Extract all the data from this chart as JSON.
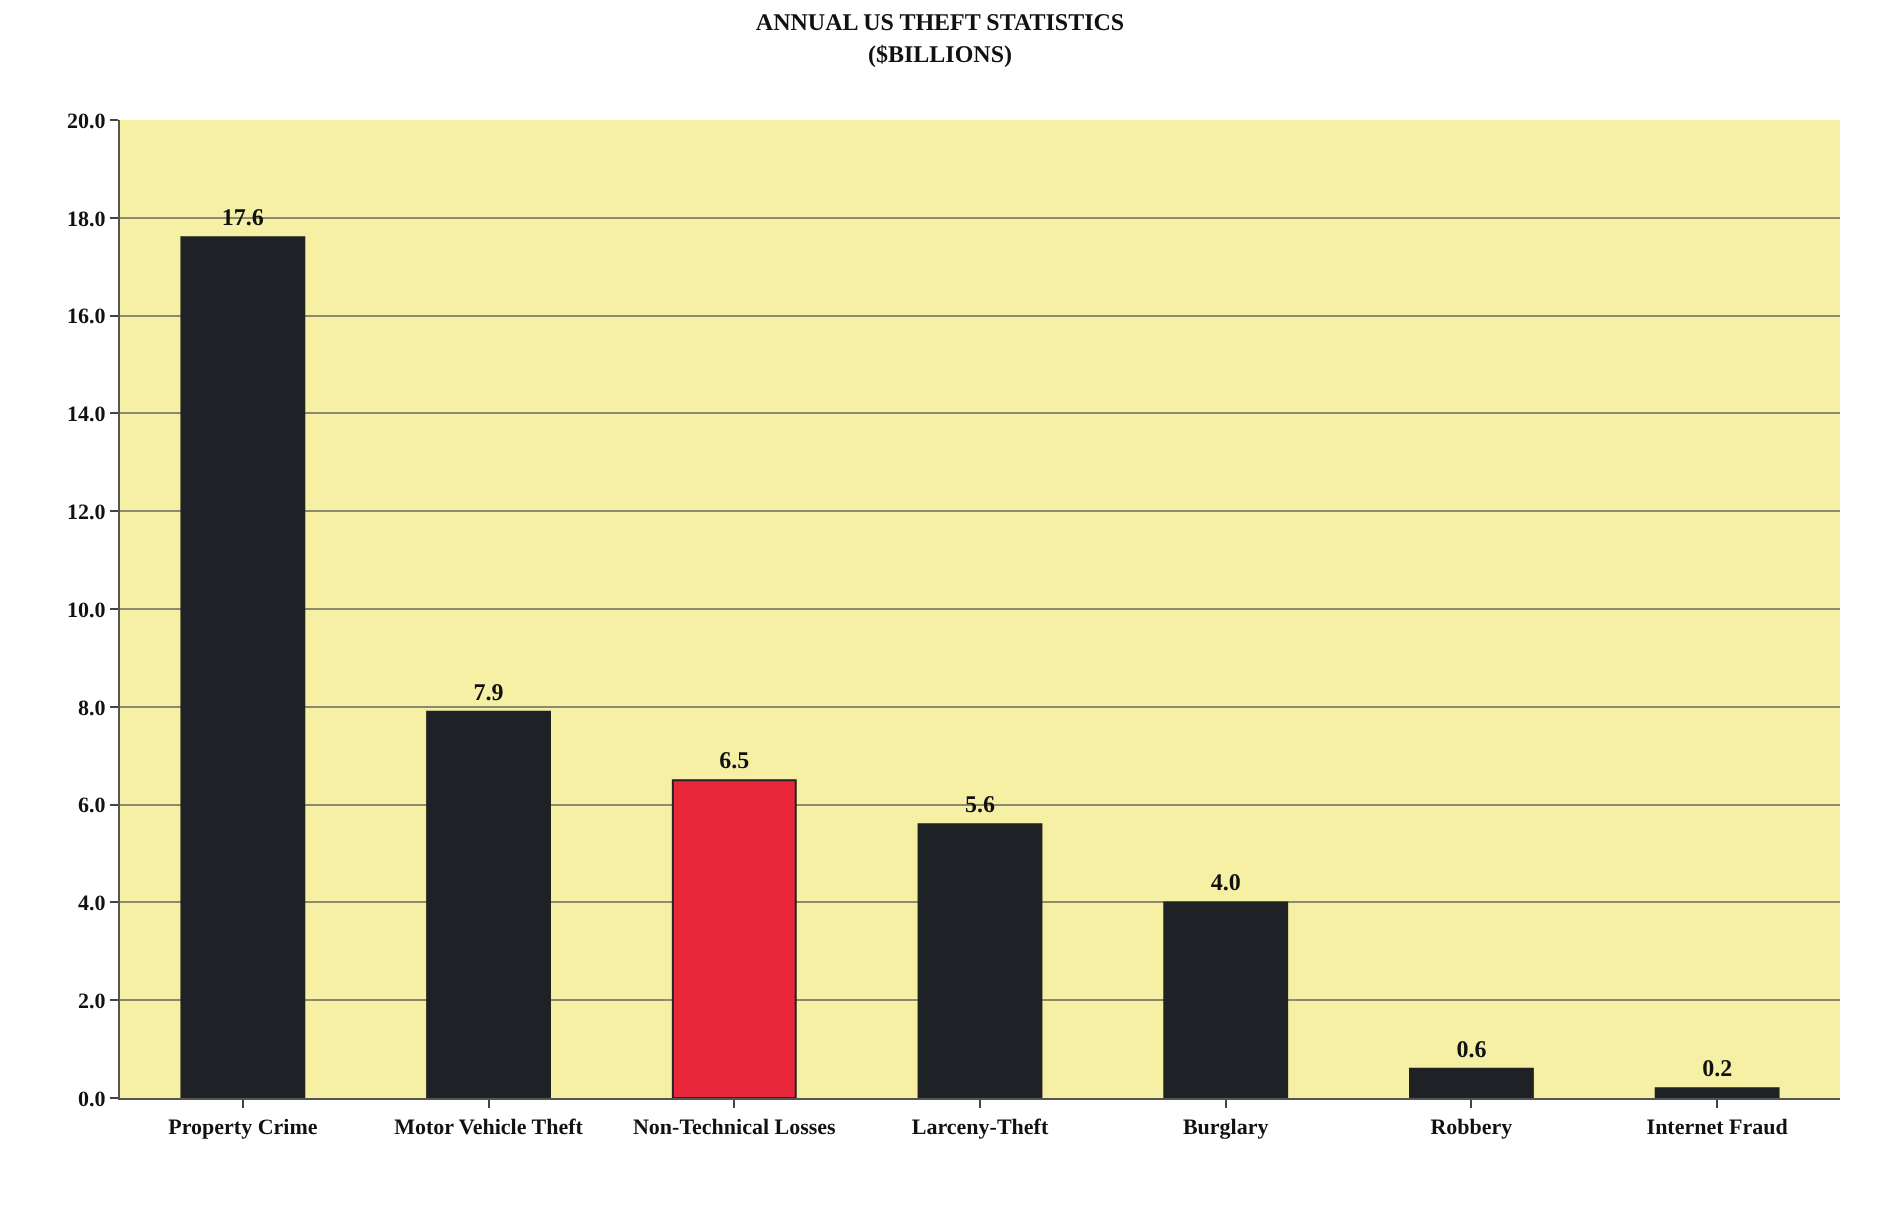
{
  "chart_data": {
    "type": "bar",
    "title": "ANNUAL US THEFT STATISTICS",
    "subtitle": "($BILLIONS)",
    "categories": [
      "Property Crime",
      "Motor Vehicle Theft",
      "Non-Technical Losses",
      "Larceny-Theft",
      "Burglary",
      "Robbery",
      "Internet Fraud"
    ],
    "values": [
      17.6,
      7.9,
      6.5,
      5.6,
      4.0,
      0.6,
      0.2
    ],
    "colors": [
      "#1e2226",
      "#1e2226",
      "#e8283a",
      "#1e2226",
      "#1e2226",
      "#1e2226",
      "#1e2226"
    ],
    "value_labels": [
      "17.6",
      "7.9",
      "6.5",
      "5.6",
      "4.0",
      "0.6",
      "0.2"
    ],
    "ylim": [
      0,
      20
    ],
    "yticks": [
      {
        "value": 0,
        "label": "0.0"
      },
      {
        "value": 2,
        "label": "2.0"
      },
      {
        "value": 4,
        "label": "4.0"
      },
      {
        "value": 6,
        "label": "6.0"
      },
      {
        "value": 8,
        "label": "8.0"
      },
      {
        "value": 10,
        "label": "10.0"
      },
      {
        "value": 12,
        "label": "12.0"
      },
      {
        "value": 14,
        "label": "14.0"
      },
      {
        "value": 16,
        "label": "16.0"
      },
      {
        "value": 18,
        "label": "18.0"
      },
      {
        "value": 20,
        "label": "20.0"
      }
    ],
    "grid": "y"
  }
}
